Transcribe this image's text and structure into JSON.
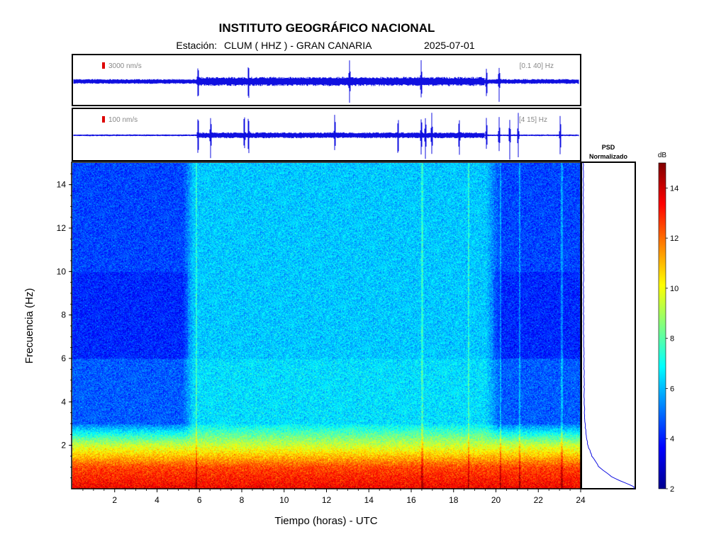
{
  "header": {
    "title": "INSTITUTO GEOGRÁFICO NACIONAL",
    "station_prefix": "Estación:",
    "station": "CLUM ( HHZ ) - GRAN CANARIA",
    "date": "2025-07-01"
  },
  "colors": {
    "trace": "#1010e0",
    "scale_marker": "#dd0000",
    "frame": "#000000",
    "colormap": [
      "#00008f",
      "#0000ff",
      "#0080ff",
      "#00ffff",
      "#80ff80",
      "#ffff00",
      "#ff8000",
      "#ff0000",
      "#800000"
    ]
  },
  "chart_data": [
    {
      "type": "line",
      "panel": "seismogram-broadband",
      "scale_label": "3000 nm/s",
      "filter_label": "[0.1 40] Hz",
      "x_range": [
        0,
        24
      ],
      "bursts_hours": [
        5.9,
        8.3,
        13.1,
        16.5,
        19.6,
        20.2
      ]
    },
    {
      "type": "line",
      "panel": "seismogram-filtered",
      "scale_label": "100 nm/s",
      "filter_label": "[4 15] Hz",
      "x_range": [
        0,
        24
      ],
      "bursts_hours": [
        5.9,
        6.5,
        8.1,
        8.3,
        12.4,
        15.4,
        16.5,
        16.7,
        17.0,
        18.3,
        19.6,
        20.2,
        20.7,
        21.1,
        23.1
      ]
    },
    {
      "type": "heatmap",
      "panel": "spectrogram",
      "xlabel": "Tiempo (horas) - UTC",
      "ylabel": "Frecuencia  (Hz)",
      "xlim": [
        0,
        24
      ],
      "ylim": [
        0,
        15
      ],
      "x_ticks": [
        "2",
        "4",
        "6",
        "8",
        "10",
        "12",
        "14",
        "16",
        "18",
        "20",
        "22",
        "24"
      ],
      "y_ticks": [
        "2",
        "4",
        "6",
        "8",
        "10",
        "12",
        "14"
      ],
      "description_levels": {
        "band_0_1_hz_db": 12.5,
        "band_1_2_hz_db": 9.5,
        "night_above_3hz_db": 4.5,
        "day_above_3hz_db": 6.2
      },
      "colorbar": {
        "label": "dB",
        "range": [
          2,
          15
        ],
        "ticks": [
          "2",
          "4",
          "6",
          "8",
          "10",
          "12",
          "14"
        ]
      }
    },
    {
      "type": "line",
      "panel": "psd",
      "title_line1": "PSD",
      "title_line2": "Normalizado",
      "ylim": [
        0,
        15
      ],
      "freq_hz": [
        0.1,
        0.5,
        1,
        1.5,
        2,
        2.5,
        3,
        3.5,
        4,
        5,
        6,
        7,
        8,
        9,
        10,
        11,
        12,
        13,
        14,
        15
      ],
      "psd_norm": [
        1.0,
        0.6,
        0.32,
        0.18,
        0.1,
        0.06,
        0.045,
        0.035,
        0.03,
        0.025,
        0.02,
        0.018,
        0.016,
        0.015,
        0.014,
        0.013,
        0.012,
        0.011,
        0.011,
        0.01
      ]
    }
  ]
}
